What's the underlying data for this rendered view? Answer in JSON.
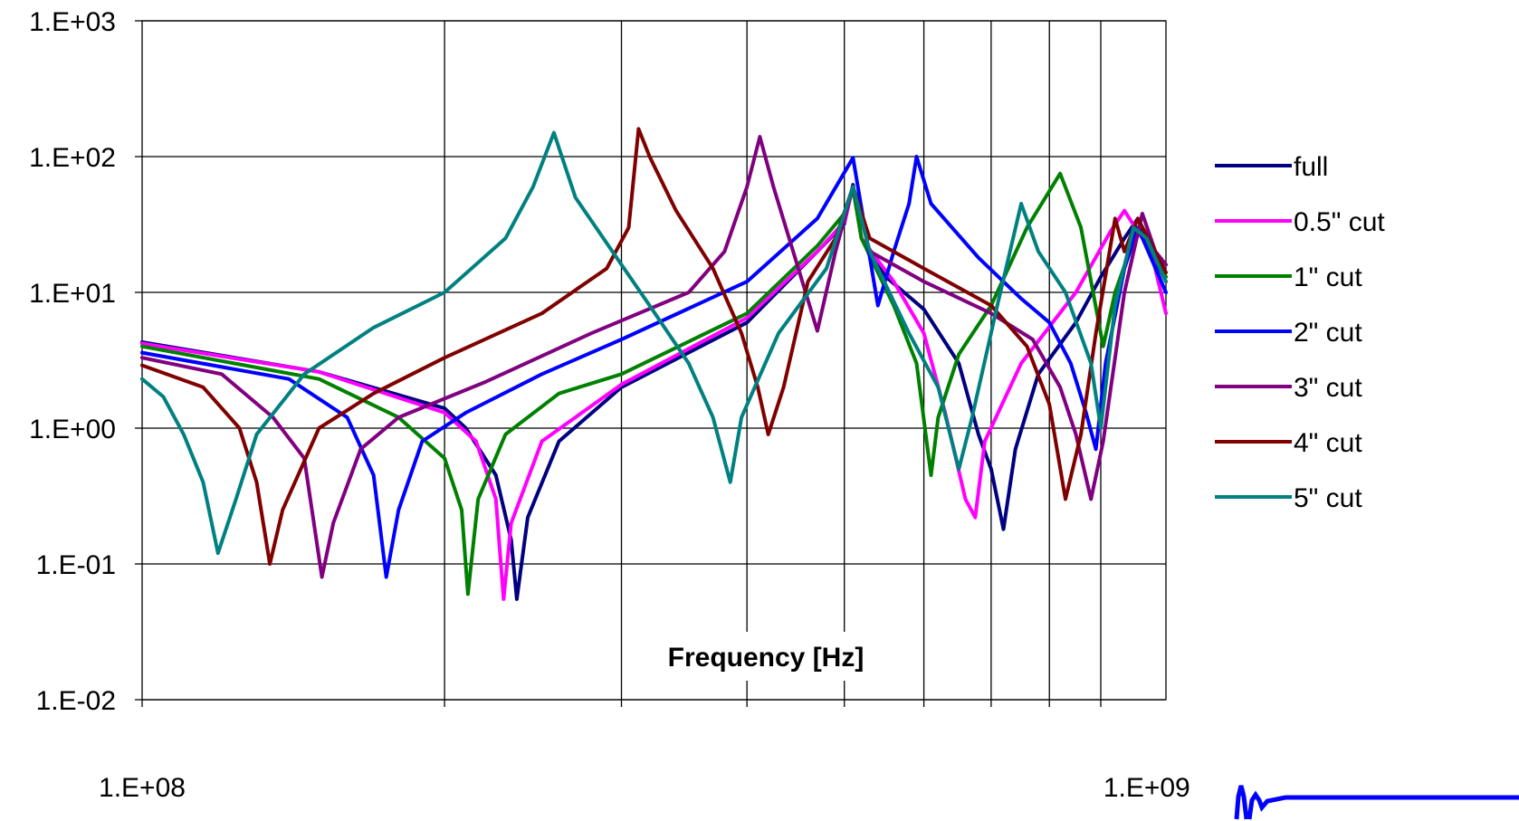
{
  "chart_data": {
    "type": "line",
    "title": "",
    "xlabel": "Frequency [Hz]",
    "ylabel": "",
    "x_scale": "log",
    "y_scale": "log",
    "xlim": [
      100000000.0,
      1045000000.0
    ],
    "ylim": [
      0.01,
      1000
    ],
    "x_tick_labels": [
      {
        "value": 100000000.0,
        "label": "1.E+08"
      },
      {
        "value": 1000000000.0,
        "label": "1.E+09"
      }
    ],
    "y_tick_labels": [
      {
        "value": 0.01,
        "label": "1.E-02"
      },
      {
        "value": 0.1,
        "label": "1.E-01"
      },
      {
        "value": 1,
        "label": "1.E+00"
      },
      {
        "value": 10,
        "label": "1.E+01"
      },
      {
        "value": 100,
        "label": "1.E+02"
      },
      {
        "value": 1000,
        "label": "1.E+03"
      }
    ],
    "x_gridlines": [
      200000000.0,
      300000000.0,
      400000000.0,
      500000000.0,
      600000000.0,
      700000000.0,
      800000000.0,
      900000000.0
    ],
    "grid": true,
    "legend_position": "right",
    "series": [
      {
        "name": "full",
        "color": "#000080",
        "points": [
          [
            100000000.0,
            4.3
          ],
          [
            150000000.0,
            2.6
          ],
          [
            200000000.0,
            1.4
          ],
          [
            210000000.0,
            1.0
          ],
          [
            225000000.0,
            0.45
          ],
          [
            233000000.0,
            0.15
          ],
          [
            236000000.0,
            0.055
          ],
          [
            242000000.0,
            0.22
          ],
          [
            260000000.0,
            0.8
          ],
          [
            300000000.0,
            2.0
          ],
          [
            400000000.0,
            6.0
          ],
          [
            470000000.0,
            20
          ],
          [
            500000000.0,
            32
          ],
          [
            510000000.0,
            62
          ],
          [
            520000000.0,
            25
          ],
          [
            550000000.0,
            13
          ],
          [
            600000000.0,
            7.5
          ],
          [
            650000000.0,
            3.0
          ],
          [
            680000000.0,
            0.9
          ],
          [
            700000000.0,
            0.5
          ],
          [
            720000000.0,
            0.18
          ],
          [
            740000000.0,
            0.7
          ],
          [
            780000000.0,
            2.5
          ],
          [
            850000000.0,
            6
          ],
          [
            900000000.0,
            13
          ],
          [
            950000000.0,
            25
          ],
          [
            980000000.0,
            35
          ],
          [
            1010000000.0,
            20
          ],
          [
            1045000000.0,
            12
          ]
        ]
      },
      {
        "name": "0.5\" cut",
        "color": "#ff00ff",
        "points": [
          [
            100000000.0,
            4.2
          ],
          [
            150000000.0,
            2.6
          ],
          [
            200000000.0,
            1.3
          ],
          [
            215000000.0,
            0.8
          ],
          [
            225000000.0,
            0.3
          ],
          [
            229000000.0,
            0.055
          ],
          [
            233000000.0,
            0.2
          ],
          [
            250000000.0,
            0.8
          ],
          [
            300000000.0,
            2.1
          ],
          [
            400000000.0,
            6.5
          ],
          [
            470000000.0,
            20
          ],
          [
            500000000.0,
            33
          ],
          [
            510000000.0,
            60
          ],
          [
            520000000.0,
            25
          ],
          [
            560000000.0,
            12
          ],
          [
            600000000.0,
            5
          ],
          [
            630000000.0,
            1.3
          ],
          [
            660000000.0,
            0.3
          ],
          [
            675000000.0,
            0.22
          ],
          [
            690000000.0,
            0.8
          ],
          [
            750000000.0,
            3.0
          ],
          [
            850000000.0,
            10
          ],
          [
            920000000.0,
            28
          ],
          [
            950000000.0,
            40
          ],
          [
            980000000.0,
            28
          ],
          [
            1010000000.0,
            20
          ],
          [
            1045000000.0,
            7
          ]
        ]
      },
      {
        "name": "1\" cut",
        "color": "#008000",
        "points": [
          [
            100000000.0,
            4.0
          ],
          [
            150000000.0,
            2.3
          ],
          [
            180000000.0,
            1.2
          ],
          [
            200000000.0,
            0.6
          ],
          [
            208000000.0,
            0.25
          ],
          [
            211000000.0,
            0.06
          ],
          [
            216000000.0,
            0.3
          ],
          [
            230000000.0,
            0.9
          ],
          [
            260000000.0,
            1.8
          ],
          [
            300000000.0,
            2.5
          ],
          [
            400000000.0,
            7.0
          ],
          [
            470000000.0,
            22
          ],
          [
            500000000.0,
            38
          ],
          [
            510000000.0,
            58
          ],
          [
            520000000.0,
            25
          ],
          [
            560000000.0,
            8
          ],
          [
            590000000.0,
            3
          ],
          [
            610000000.0,
            0.45
          ],
          [
            620000000.0,
            1.2
          ],
          [
            650000000.0,
            3.5
          ],
          [
            700000000.0,
            8
          ],
          [
            760000000.0,
            30
          ],
          [
            820000000.0,
            75
          ],
          [
            860000000.0,
            30
          ],
          [
            905000000.0,
            4.0
          ],
          [
            930000000.0,
            10
          ],
          [
            980000000.0,
            30
          ],
          [
            1045000000.0,
            13
          ]
        ]
      },
      {
        "name": "2\" cut",
        "color": "#0000ff",
        "points": [
          [
            100000000.0,
            3.6
          ],
          [
            140000000.0,
            2.3
          ],
          [
            160000000.0,
            1.2
          ],
          [
            170000000.0,
            0.45
          ],
          [
            175000000.0,
            0.08
          ],
          [
            180000000.0,
            0.25
          ],
          [
            190000000.0,
            0.8
          ],
          [
            210000000.0,
            1.3
          ],
          [
            250000000.0,
            2.5
          ],
          [
            300000000.0,
            4.5
          ],
          [
            400000000.0,
            12
          ],
          [
            470000000.0,
            35
          ],
          [
            510000000.0,
            98
          ],
          [
            540000000.0,
            8
          ],
          [
            560000000.0,
            20
          ],
          [
            580000000.0,
            45
          ],
          [
            590000000.0,
            100
          ],
          [
            610000000.0,
            45
          ],
          [
            680000000.0,
            18
          ],
          [
            750000000.0,
            9
          ],
          [
            800000000.0,
            6
          ],
          [
            840000000.0,
            3
          ],
          [
            870000000.0,
            1.3
          ],
          [
            890000000.0,
            0.7
          ],
          [
            910000000.0,
            3
          ],
          [
            950000000.0,
            15
          ],
          [
            980000000.0,
            30
          ],
          [
            1045000000.0,
            10
          ]
        ]
      },
      {
        "name": "3\" cut",
        "color": "#800080",
        "points": [
          [
            100000000.0,
            3.3
          ],
          [
            120000000.0,
            2.5
          ],
          [
            135000000.0,
            1.2
          ],
          [
            145000000.0,
            0.6
          ],
          [
            151000000.0,
            0.08
          ],
          [
            155000000.0,
            0.2
          ],
          [
            165000000.0,
            0.7
          ],
          [
            180000000.0,
            1.2
          ],
          [
            220000000.0,
            2.2
          ],
          [
            280000000.0,
            5
          ],
          [
            350000000.0,
            10
          ],
          [
            380000000.0,
            20
          ],
          [
            400000000.0,
            60
          ],
          [
            412000000.0,
            140
          ],
          [
            425000000.0,
            60
          ],
          [
            450000000.0,
            15
          ],
          [
            470000000.0,
            5.2
          ],
          [
            490000000.0,
            20
          ],
          [
            510000000.0,
            60
          ],
          [
            530000000.0,
            20
          ],
          [
            600000000.0,
            12
          ],
          [
            700000000.0,
            7
          ],
          [
            770000000.0,
            4.5
          ],
          [
            820000000.0,
            2
          ],
          [
            850000000.0,
            0.9
          ],
          [
            880000000.0,
            0.3
          ],
          [
            905000000.0,
            0.8
          ],
          [
            950000000.0,
            10
          ],
          [
            990000000.0,
            38
          ],
          [
            1020000000.0,
            20
          ],
          [
            1045000000.0,
            16
          ]
        ]
      },
      {
        "name": "4\" cut",
        "color": "#800000",
        "points": [
          [
            100000000.0,
            2.9
          ],
          [
            115000000.0,
            2.0
          ],
          [
            125000000.0,
            1.0
          ],
          [
            130000000.0,
            0.4
          ],
          [
            134000000.0,
            0.1
          ],
          [
            138000000.0,
            0.25
          ],
          [
            150000000.0,
            1.0
          ],
          [
            170000000.0,
            1.8
          ],
          [
            200000000.0,
            3.3
          ],
          [
            250000000.0,
            7
          ],
          [
            290000000.0,
            15
          ],
          [
            305000000.0,
            30
          ],
          [
            312000000.0,
            160
          ],
          [
            320000000.0,
            100
          ],
          [
            340000000.0,
            40
          ],
          [
            370000000.0,
            15
          ],
          [
            395000000.0,
            5
          ],
          [
            410000000.0,
            2
          ],
          [
            420000000.0,
            0.9
          ],
          [
            435000000.0,
            2
          ],
          [
            460000000.0,
            12
          ],
          [
            490000000.0,
            25
          ],
          [
            510000000.0,
            60
          ],
          [
            530000000.0,
            25
          ],
          [
            600000000.0,
            15
          ],
          [
            700000000.0,
            8
          ],
          [
            760000000.0,
            4
          ],
          [
            800000000.0,
            1.5
          ],
          [
            830000000.0,
            0.3
          ],
          [
            860000000.0,
            0.9
          ],
          [
            890000000.0,
            5
          ],
          [
            930000000.0,
            35
          ],
          [
            950000000.0,
            20
          ],
          [
            980000000.0,
            35
          ],
          [
            1045000000.0,
            14
          ]
        ]
      },
      {
        "name": "5\" cut",
        "color": "#008080",
        "points": [
          [
            100000000.0,
            2.3
          ],
          [
            105000000.0,
            1.7
          ],
          [
            110000000.0,
            0.9
          ],
          [
            115000000.0,
            0.4
          ],
          [
            119000000.0,
            0.12
          ],
          [
            124000000.0,
            0.3
          ],
          [
            130000000.0,
            0.9
          ],
          [
            145000000.0,
            2.5
          ],
          [
            170000000.0,
            5.5
          ],
          [
            200000000.0,
            10
          ],
          [
            230000000.0,
            25
          ],
          [
            245000000.0,
            60
          ],
          [
            257000000.0,
            150
          ],
          [
            270000000.0,
            50
          ],
          [
            300000000.0,
            16
          ],
          [
            320000000.0,
            8
          ],
          [
            350000000.0,
            3
          ],
          [
            370000000.0,
            1.2
          ],
          [
            385000000.0,
            0.4
          ],
          [
            395000000.0,
            1.2
          ],
          [
            430000000.0,
            5
          ],
          [
            480000000.0,
            15
          ],
          [
            510000000.0,
            60
          ],
          [
            530000000.0,
            20
          ],
          [
            580000000.0,
            5
          ],
          [
            620000000.0,
            2
          ],
          [
            650000000.0,
            0.5
          ],
          [
            670000000.0,
            1.2
          ],
          [
            710000000.0,
            8
          ],
          [
            750000000.0,
            45
          ],
          [
            780000000.0,
            20
          ],
          [
            830000000.0,
            10
          ],
          [
            880000000.0,
            3
          ],
          [
            900000000.0,
            1.0
          ],
          [
            930000000.0,
            8
          ],
          [
            970000000.0,
            30
          ],
          [
            1000000000.0,
            25
          ],
          [
            1045000000.0,
            12
          ]
        ]
      }
    ]
  }
}
